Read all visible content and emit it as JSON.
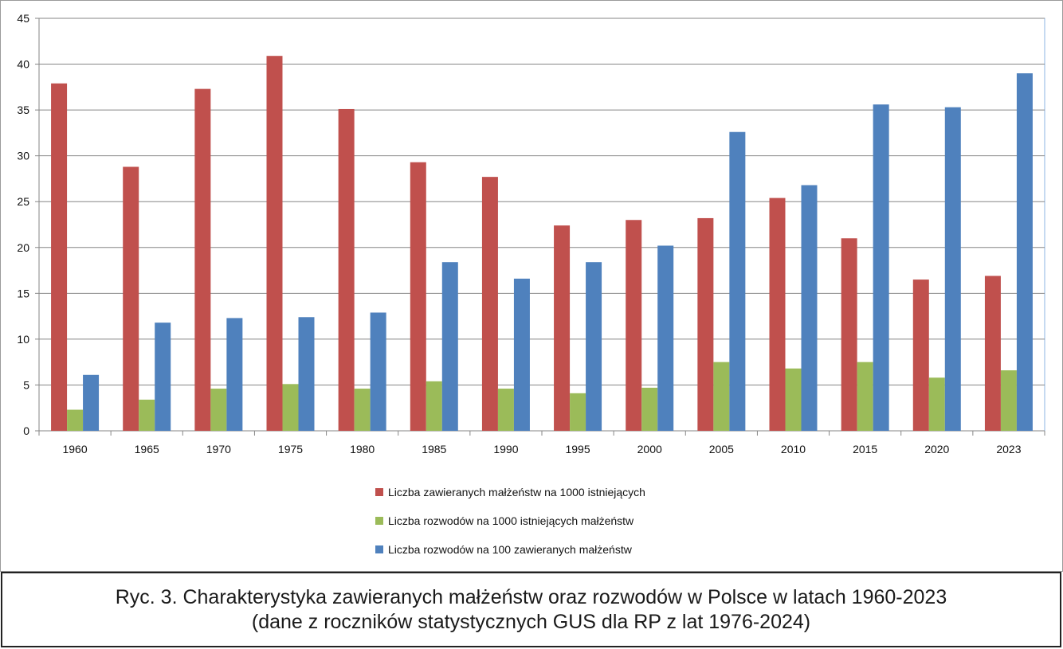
{
  "chart_data": {
    "type": "bar",
    "title": "",
    "xlabel": "",
    "ylabel": "",
    "ylim": [
      0,
      45
    ],
    "yticks": [
      0,
      5,
      10,
      15,
      20,
      25,
      30,
      35,
      40,
      45
    ],
    "grid": true,
    "legend_position": "bottom",
    "categories": [
      "1960",
      "1965",
      "1970",
      "1975",
      "1980",
      "1985",
      "1990",
      "1995",
      "2000",
      "2005",
      "2010",
      "2015",
      "2020",
      "2023"
    ],
    "series": [
      {
        "name": "Liczba zawieranych małżeństw na 1000 istniejących",
        "color": "#c0504d",
        "values": [
          37.9,
          28.8,
          37.3,
          40.9,
          35.1,
          29.3,
          27.7,
          22.4,
          23.0,
          23.2,
          25.4,
          21.0,
          16.5,
          16.9
        ]
      },
      {
        "name": "Liczba rozwodów na 1000 istniejących małżeństw",
        "color": "#9bbb59",
        "values": [
          2.3,
          3.4,
          4.6,
          5.1,
          4.6,
          5.4,
          4.6,
          4.1,
          4.7,
          7.5,
          6.8,
          7.5,
          5.8,
          6.6
        ]
      },
      {
        "name": "Liczba rozwodów na 100 zawieranych małżeństw",
        "color": "#4f81bd",
        "values": [
          6.1,
          11.8,
          12.3,
          12.4,
          12.9,
          18.4,
          16.6,
          18.4,
          20.2,
          32.6,
          26.8,
          35.6,
          35.3,
          39.0
        ]
      }
    ]
  },
  "caption": {
    "line1": "Ryc. 3. Charakterystyka zawieranych małżeństw oraz rozwodów w Polsce w latach 1960-2023",
    "line2": "(dane z roczników statystycznych GUS dla RP z lat 1976-2024)"
  }
}
